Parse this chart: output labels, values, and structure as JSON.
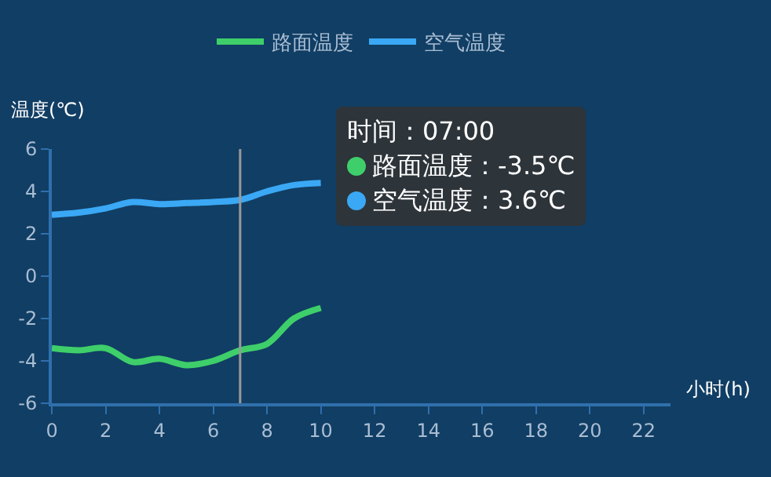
{
  "chart_data": {
    "type": "line",
    "xlabel": "小时(h)",
    "ylabel": "温度(℃)",
    "x": [
      0,
      1,
      2,
      3,
      4,
      5,
      6,
      7,
      8,
      9,
      10
    ],
    "series": [
      {
        "name": "路面温度",
        "color": "#3ecf6a",
        "values": [
          -3.4,
          -3.5,
          -3.4,
          -4.05,
          -3.9,
          -4.2,
          -4.0,
          -3.5,
          -3.2,
          -2.0,
          -1.5
        ]
      },
      {
        "name": "空气温度",
        "color": "#3aa8f5",
        "values": [
          2.9,
          3.0,
          3.2,
          3.5,
          3.4,
          3.45,
          3.5,
          3.6,
          4.0,
          4.3,
          4.4
        ]
      }
    ],
    "xlim": [
      0,
      23
    ],
    "xticks": [
      0,
      2,
      4,
      6,
      8,
      10,
      12,
      14,
      16,
      18,
      20,
      22
    ],
    "ylim": [
      -6,
      6
    ],
    "yticks": [
      -6,
      -4,
      -2,
      0,
      2,
      4,
      6
    ],
    "legend": "top",
    "marker": "none",
    "line_style": "solid",
    "ref_lines": [
      {
        "axis": "x",
        "value": 7,
        "color": "#999999"
      }
    ],
    "annotations": [
      "时间：07:00",
      "路面温度：-3.5℃",
      "空气温度：3.6℃"
    ]
  }
}
